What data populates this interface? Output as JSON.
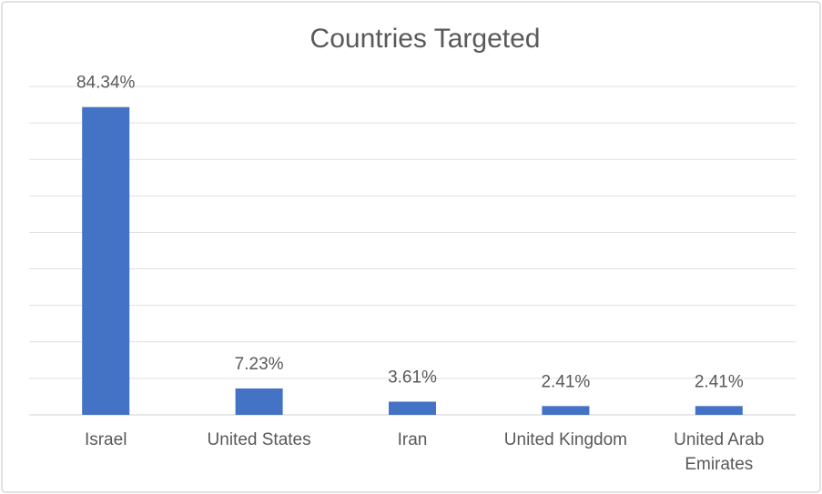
{
  "chart_data": {
    "type": "bar",
    "title": "Countries Targeted",
    "categories": [
      "Israel",
      "United States",
      "Iran",
      "United Kingdom",
      "United Arab Emirates"
    ],
    "values": [
      84.34,
      7.23,
      3.61,
      2.41,
      2.41
    ],
    "value_labels": [
      "84.34%",
      "7.23%",
      "3.61%",
      "2.41%",
      "2.41%"
    ],
    "color": "#4472c4",
    "ylim": [
      0,
      90
    ],
    "yticks": [
      0,
      10,
      20,
      30,
      40,
      50,
      60,
      70,
      80,
      90
    ],
    "grid": true
  }
}
